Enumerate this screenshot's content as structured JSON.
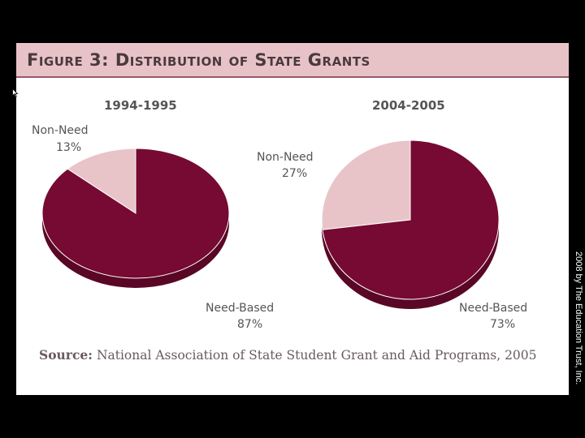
{
  "title": "Figure 3: Distribution of State Grants",
  "source": {
    "label": "Source:",
    "text": "National Association of State Student Grant and Aid Programs, 2005"
  },
  "copyright": "2008 by The Education Trust, Inc.",
  "colors": {
    "need_based": "#760a32",
    "need_based_side": "#5a0726",
    "non_need": "#e8c4c9",
    "non_need_side": "#c9a1a8",
    "title_band": "#e7c3c8",
    "background": "#000000"
  },
  "chart_data": [
    {
      "type": "pie",
      "title": "1994-1995",
      "slices": [
        {
          "label": "Non-Need",
          "value": 13,
          "value_label": "13%"
        },
        {
          "label": "Need-Based",
          "value": 87,
          "value_label": "87%"
        }
      ]
    },
    {
      "type": "pie",
      "title": "2004-2005",
      "slices": [
        {
          "label": "Non-Need",
          "value": 27,
          "value_label": "27%"
        },
        {
          "label": "Need-Based",
          "value": 73,
          "value_label": "73%"
        }
      ]
    }
  ]
}
